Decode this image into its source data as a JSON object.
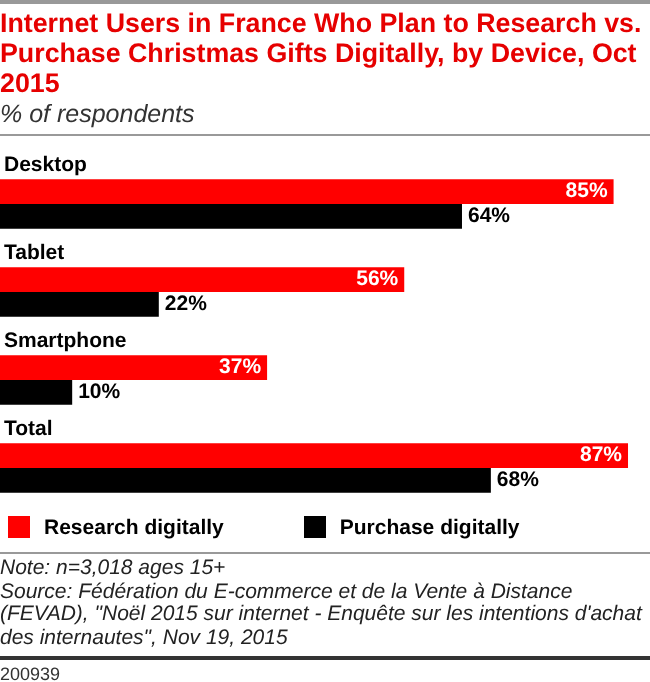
{
  "chart_data": {
    "type": "bar",
    "orientation": "horizontal",
    "title": "Internet Users in France Who Plan to Research vs. Purchase Christmas Gifts Digitally, by Device, Oct 2015",
    "subtitle": "% of respondents",
    "categories": [
      "Desktop",
      "Tablet",
      "Smartphone",
      "Total"
    ],
    "series": [
      {
        "name": "Research digitally",
        "color": "#ff0000",
        "values": [
          85,
          56,
          37,
          87
        ],
        "value_labels": [
          "85%",
          "56%",
          "37%",
          "87%"
        ]
      },
      {
        "name": "Purchase digitally",
        "color": "#000000",
        "values": [
          64,
          22,
          10,
          68
        ],
        "value_labels": [
          "64%",
          "22%",
          "10%",
          "68%"
        ]
      }
    ],
    "legend": "bottom",
    "annotations": [
      "Note: n=3,018 ages 15+",
      "Source: Fédération du E-commerce et de la Vente à Distance (FEVAD), \"Noël 2015 sur internet - Enquête sur les intentions d'achat des internautes\", Nov 19, 2015",
      "200939"
    ]
  }
}
